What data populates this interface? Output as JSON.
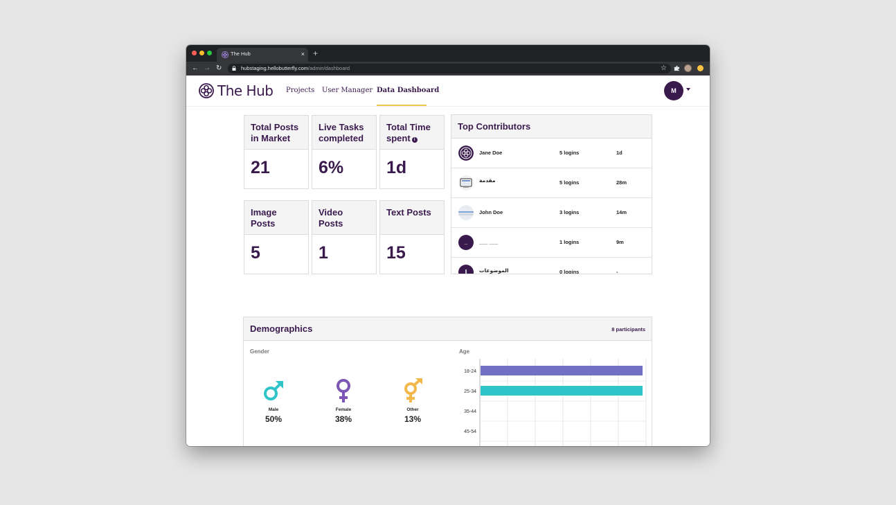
{
  "browser": {
    "tab_title": "The Hub",
    "tab_close": "×",
    "new_tab": "+",
    "url_host": "hubstaging.hellobutterfly.com",
    "url_path": "/admin/dashboard",
    "back": "←",
    "forward": "→",
    "reload": "↻",
    "bookmark": "☆",
    "extensions_icon": "puzzle-icon"
  },
  "header": {
    "logo_text": "The Hub",
    "nav": [
      "Projects",
      "User Manager",
      "Data Dashboard"
    ],
    "active_nav": "Data Dashboard",
    "avatar_initial": "M"
  },
  "stats": [
    {
      "title": "Total Posts in Market",
      "value": "21"
    },
    {
      "title": "Live Tasks completed",
      "value": "6%"
    },
    {
      "title": "Total Time spent",
      "value": "1d",
      "info_icon": "i"
    },
    {
      "title": "Image Posts",
      "value": "5"
    },
    {
      "title": "Video Posts",
      "value": "1"
    },
    {
      "title": "Text Posts",
      "value": "15"
    }
  ],
  "top_contributors": {
    "title": "Top Contributors",
    "rows": [
      {
        "name": "Jane Doe",
        "logins": "5 logins",
        "time": "1d",
        "avatar": "logo"
      },
      {
        "name": "مقدمة",
        "logins": "5 logins",
        "time": "28m",
        "avatar": "screen"
      },
      {
        "name": "John Doe",
        "logins": "3 logins",
        "time": "14m",
        "avatar": "photo"
      },
      {
        "name": "___ ___",
        "logins": "1 logins",
        "time": "9m",
        "avatar": "initial",
        "initial": "_"
      },
      {
        "name": "الموضوعات",
        "logins": "0 logins",
        "time": "-",
        "avatar": "initial",
        "initial": "ا"
      }
    ]
  },
  "demographics": {
    "title": "Demographics",
    "participants": "8 participants",
    "gender_label": "Gender",
    "age_label": "Age",
    "gender": [
      {
        "label": "Male",
        "pct": "50%",
        "color": "#2ec4c8",
        "icon": "male-symbol-icon"
      },
      {
        "label": "Female",
        "pct": "38%",
        "color": "#7d55b5",
        "icon": "female-symbol-icon"
      },
      {
        "label": "Other",
        "pct": "13%",
        "color": "#f2b84b",
        "icon": "transgender-symbol-icon"
      }
    ]
  },
  "chart_data": {
    "type": "bar",
    "orientation": "horizontal",
    "categories": [
      "18-24",
      "25-34",
      "35-44",
      "45-54"
    ],
    "values": [
      6,
      6,
      0,
      0
    ],
    "colors": [
      "#7070c4",
      "#2ec4c8",
      "#cccccc",
      "#cccccc"
    ],
    "xlim": [
      0,
      6
    ],
    "grid": true,
    "title": "Age"
  },
  "colors": {
    "brand": "#3a1a4d",
    "accent_underline": "#f2c94c"
  }
}
